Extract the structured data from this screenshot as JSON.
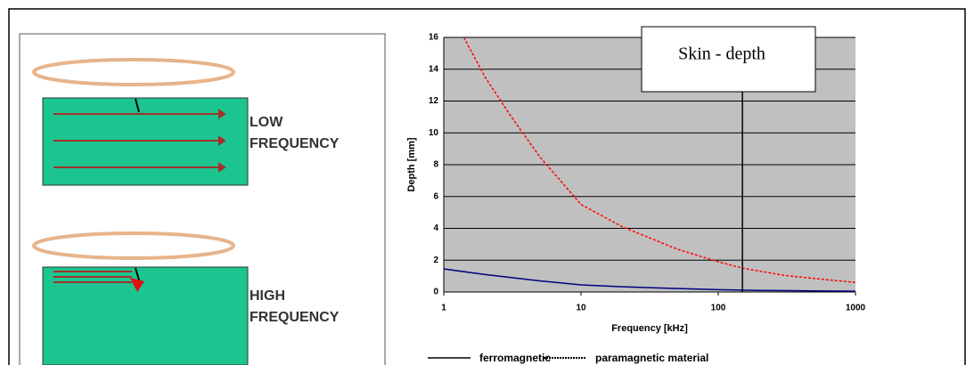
{
  "diagram": {
    "low_label": [
      "LOW",
      "FREQUENCY"
    ],
    "high_label": [
      "HIGH",
      "FREQUENCY"
    ]
  },
  "chart_data": {
    "type": "line",
    "x_label": "Frequency [kHz]",
    "y_label": "Depth [mm]",
    "annotation": "Skin - depth",
    "marker_x": 150,
    "log_x": true,
    "grid": true,
    "xlim": [
      1,
      1000
    ],
    "xticks": [
      1,
      10,
      100,
      1000
    ],
    "ylim": [
      0,
      16
    ],
    "yticks": [
      0,
      2,
      4,
      6,
      8,
      10,
      12,
      14,
      16
    ],
    "series": [
      {
        "name": "ferromagnetic",
        "color": "#000080",
        "dash": false,
        "x": [
          1,
          2,
          5,
          10,
          20,
          50,
          100,
          200,
          500,
          1000
        ],
        "values": [
          1.45,
          1.1,
          0.7,
          0.45,
          0.33,
          0.22,
          0.15,
          0.1,
          0.07,
          0.05
        ]
      },
      {
        "name": "paramagnetic material",
        "color": "#ff0000",
        "dash": true,
        "x": [
          1.4,
          2,
          3,
          5,
          10,
          20,
          50,
          100,
          150,
          300,
          500,
          1000
        ],
        "values": [
          16,
          13.5,
          11.2,
          8.5,
          5.5,
          4.1,
          2.7,
          1.9,
          1.5,
          1.05,
          0.85,
          0.6
        ]
      }
    ]
  }
}
